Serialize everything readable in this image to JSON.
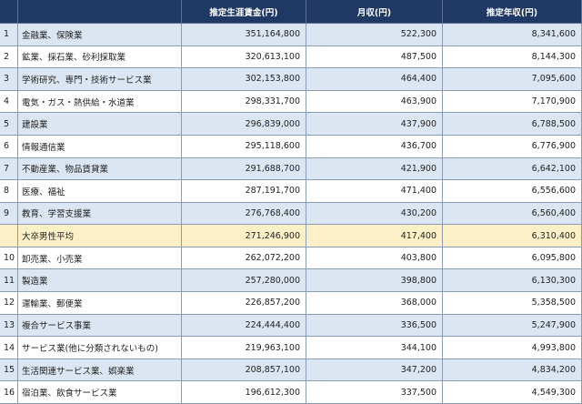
{
  "table": {
    "columns": [
      "推定生涯賃金(円)",
      "月収(円)",
      "推定年収(円)"
    ],
    "rows": [
      {
        "rank": "1",
        "name": "金融業、保険業",
        "lifetime": "351,164,800",
        "monthly": "522,300",
        "annual": "8,341,600"
      },
      {
        "rank": "2",
        "name": "鉱業、採石業、砂利採取業",
        "lifetime": "320,613,100",
        "monthly": "487,500",
        "annual": "8,144,300"
      },
      {
        "rank": "3",
        "name": "学術研究、専門・技術サービス業",
        "lifetime": "302,153,800",
        "monthly": "464,400",
        "annual": "7,095,600"
      },
      {
        "rank": "4",
        "name": "電気・ガス・熱供給・水道業",
        "lifetime": "298,331,700",
        "monthly": "463,900",
        "annual": "7,170,900"
      },
      {
        "rank": "5",
        "name": "建設業",
        "lifetime": "296,839,000",
        "monthly": "437,900",
        "annual": "6,788,500"
      },
      {
        "rank": "6",
        "name": "情報通信業",
        "lifetime": "295,118,600",
        "monthly": "436,700",
        "annual": "6,776,900"
      },
      {
        "rank": "7",
        "name": "不動産業、物品賃貸業",
        "lifetime": "291,688,700",
        "monthly": "421,900",
        "annual": "6,642,100"
      },
      {
        "rank": "8",
        "name": "医療、福祉",
        "lifetime": "287,191,700",
        "monthly": "471,400",
        "annual": "6,556,600"
      },
      {
        "rank": "9",
        "name": "教育、学習支援業",
        "lifetime": "276,768,400",
        "monthly": "430,200",
        "annual": "6,560,400"
      },
      {
        "name": "大卒男性平均",
        "lifetime": "271,246,900",
        "monthly": "417,400",
        "annual": "6,310,400"
      },
      {
        "rank": "10",
        "name": "卸売業、小売業",
        "lifetime": "262,072,200",
        "monthly": "403,800",
        "annual": "6,095,800"
      },
      {
        "rank": "11",
        "name": "製造業",
        "lifetime": "257,280,000",
        "monthly": "398,800",
        "annual": "6,130,300"
      },
      {
        "rank": "12",
        "name": "運輸業、郵便業",
        "lifetime": "226,857,200",
        "monthly": "368,000",
        "annual": "5,358,500"
      },
      {
        "rank": "13",
        "name": "複合サービス事業",
        "lifetime": "224,444,400",
        "monthly": "336,500",
        "annual": "5,247,900"
      },
      {
        "rank": "14",
        "name": "サービス業(他に分類されないもの)",
        "lifetime": "219,963,100",
        "monthly": "344,100",
        "annual": "4,993,800"
      },
      {
        "rank": "15",
        "name": "生活関連サービス業、娯楽業",
        "lifetime": "208,857,100",
        "monthly": "347,200",
        "annual": "4,834,200"
      },
      {
        "rank": "16",
        "name": "宿泊業、飲食サービス業",
        "lifetime": "196,612,300",
        "monthly": "337,500",
        "annual": "4,549,300"
      }
    ]
  }
}
